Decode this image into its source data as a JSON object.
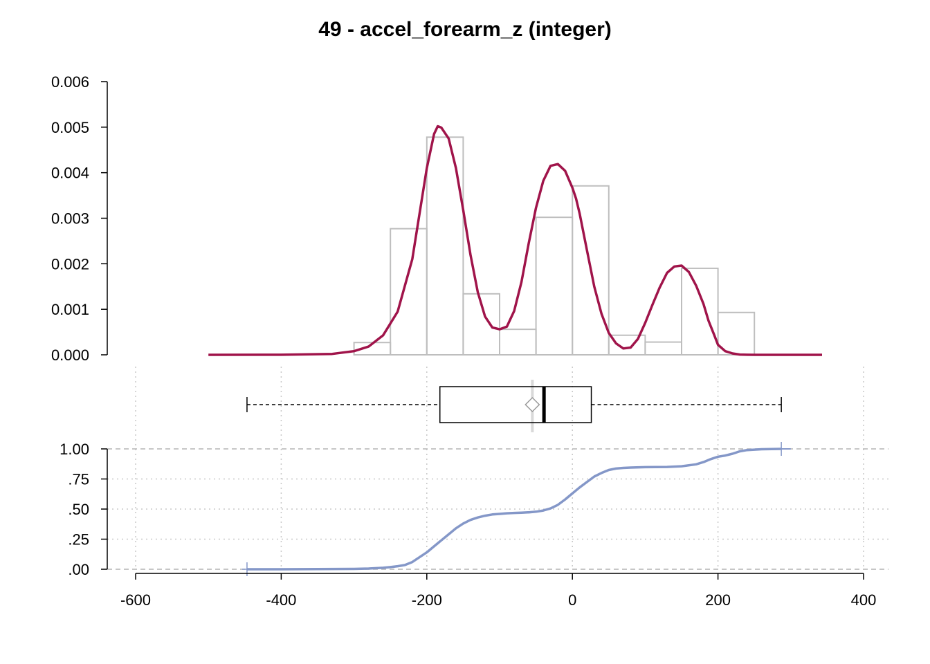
{
  "title": "49 - accel_forearm_z (integer)",
  "chart_data": [
    {
      "type": "histogram+density",
      "panel": "density",
      "ylim": [
        0,
        0.006
      ],
      "y_ticks": [
        "0.000",
        "0.001",
        "0.002",
        "0.003",
        "0.004",
        "0.005",
        "0.006"
      ],
      "y_tick_values": [
        0,
        0.001,
        0.002,
        0.003,
        0.004,
        0.005,
        0.006
      ],
      "bins": [
        {
          "x0": -300,
          "x1": -250,
          "density": 0.00027
        },
        {
          "x0": -250,
          "x1": -200,
          "density": 0.00277
        },
        {
          "x0": -200,
          "x1": -150,
          "density": 0.00478
        },
        {
          "x0": -150,
          "x1": -100,
          "density": 0.00134
        },
        {
          "x0": -100,
          "x1": -50,
          "density": 0.00056
        },
        {
          "x0": -50,
          "x1": 0,
          "density": 0.00302
        },
        {
          "x0": 0,
          "x1": 50,
          "density": 0.00371
        },
        {
          "x0": 50,
          "x1": 100,
          "density": 0.00043
        },
        {
          "x0": 100,
          "x1": 150,
          "density": 0.00028
        },
        {
          "x0": 150,
          "x1": 200,
          "density": 0.0019
        },
        {
          "x0": 200,
          "x1": 250,
          "density": 0.00093
        }
      ],
      "density_curve": {
        "x": [
          -500,
          -400,
          -330,
          -300,
          -280,
          -260,
          -240,
          -220,
          -210,
          -200,
          -190,
          -185,
          -180,
          -170,
          -160,
          -150,
          -140,
          -130,
          -120,
          -110,
          -100,
          -90,
          -80,
          -70,
          -60,
          -50,
          -40,
          -30,
          -20,
          -10,
          0,
          5,
          10,
          20,
          30,
          40,
          50,
          60,
          70,
          80,
          90,
          100,
          110,
          120,
          130,
          140,
          150,
          160,
          170,
          180,
          187,
          195,
          200,
          210,
          220,
          230,
          240,
          250,
          260,
          280,
          300,
          343
        ],
        "y": [
          0,
          2e-06,
          2e-05,
          8e-05,
          0.00018,
          0.00043,
          0.00095,
          0.0021,
          0.0031,
          0.0041,
          0.00485,
          0.00502,
          0.00499,
          0.00475,
          0.0041,
          0.00318,
          0.0022,
          0.00138,
          0.00084,
          0.0006,
          0.00056,
          0.00062,
          0.00096,
          0.0016,
          0.00245,
          0.00323,
          0.00382,
          0.00415,
          0.00419,
          0.00404,
          0.00367,
          0.00343,
          0.0031,
          0.0023,
          0.0015,
          0.0009,
          0.00048,
          0.00025,
          0.00014,
          0.00016,
          0.00035,
          0.0007,
          0.0011,
          0.00148,
          0.0018,
          0.00194,
          0.00196,
          0.00182,
          0.00152,
          0.00112,
          0.00075,
          0.00043,
          0.00022,
          8e-05,
          3e-05,
          6e-06,
          1e-06,
          0,
          0,
          0,
          0,
          0
        ]
      }
    },
    {
      "type": "boxplot",
      "panel": "box",
      "min": -447,
      "q1": -182,
      "median": -39,
      "q3": 26,
      "max": 287,
      "mean": -55
    },
    {
      "type": "line",
      "panel": "ecdf",
      "ylim": [
        0,
        1
      ],
      "y_ticks": [
        ".00",
        ".25",
        ".50",
        ".75",
        "1.00"
      ],
      "y_tick_values": [
        0,
        0.25,
        0.5,
        0.75,
        1
      ],
      "xlim": [
        -600,
        400
      ],
      "x_ticks": [
        "-600",
        "-400",
        "-200",
        "0",
        "200",
        "400"
      ],
      "x_tick_values": [
        -600,
        -400,
        -200,
        0,
        200,
        400
      ],
      "x": [
        -447,
        -400,
        -350,
        -300,
        -280,
        -260,
        -250,
        -240,
        -230,
        -220,
        -210,
        -200,
        -190,
        -180,
        -170,
        -160,
        -150,
        -140,
        -130,
        -120,
        -110,
        -100,
        -90,
        -80,
        -70,
        -60,
        -50,
        -40,
        -30,
        -20,
        -10,
        0,
        10,
        20,
        30,
        40,
        50,
        60,
        70,
        80,
        100,
        130,
        150,
        170,
        180,
        190,
        200,
        210,
        220,
        230,
        240,
        260,
        287
      ],
      "y": [
        0,
        0,
        0.001,
        0.003,
        0.006,
        0.012,
        0.018,
        0.025,
        0.035,
        0.06,
        0.1,
        0.14,
        0.19,
        0.24,
        0.29,
        0.34,
        0.38,
        0.41,
        0.43,
        0.445,
        0.455,
        0.46,
        0.465,
        0.468,
        0.47,
        0.473,
        0.478,
        0.488,
        0.505,
        0.535,
        0.58,
        0.63,
        0.68,
        0.725,
        0.77,
        0.8,
        0.825,
        0.837,
        0.842,
        0.845,
        0.848,
        0.85,
        0.856,
        0.872,
        0.89,
        0.915,
        0.935,
        0.945,
        0.96,
        0.98,
        0.99,
        0.997,
        1
      ],
      "endpoints_x": [
        -447,
        287
      ]
    }
  ],
  "colors": {
    "density": "#A0144A",
    "ecdf": "#8497C8",
    "histogram": "#bebebe",
    "grid": "#c8c8c8",
    "mean_marker": "#999999",
    "mean_line": "#d9d9d9"
  }
}
